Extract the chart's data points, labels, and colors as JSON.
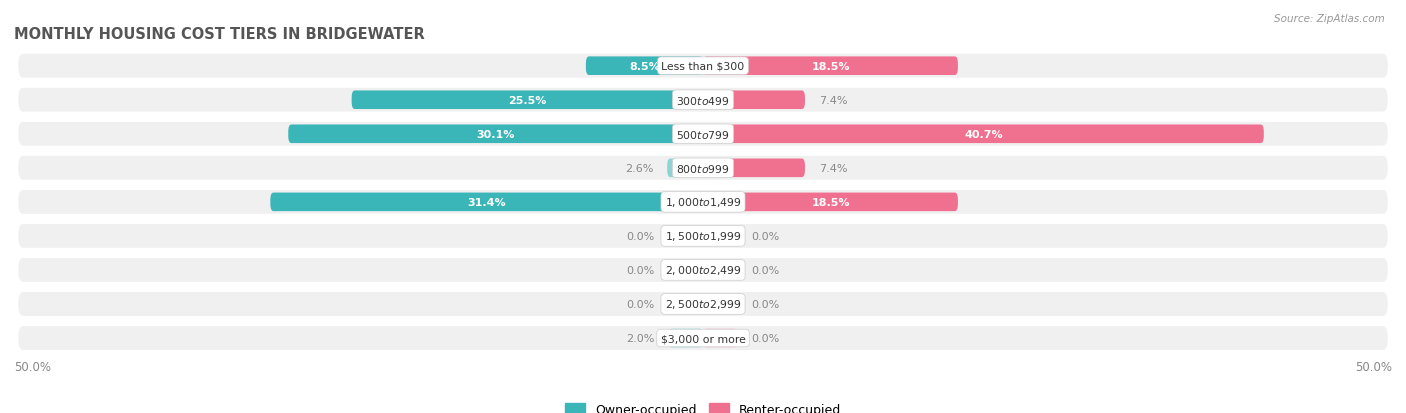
{
  "title": "MONTHLY HOUSING COST TIERS IN BRIDGEWATER",
  "source": "Source: ZipAtlas.com",
  "categories": [
    "Less than $300",
    "$300 to $499",
    "$500 to $799",
    "$800 to $999",
    "$1,000 to $1,499",
    "$1,500 to $1,999",
    "$2,000 to $2,499",
    "$2,500 to $2,999",
    "$3,000 or more"
  ],
  "owner_values": [
    8.5,
    25.5,
    30.1,
    2.6,
    31.4,
    0.0,
    0.0,
    0.0,
    2.0
  ],
  "renter_values": [
    18.5,
    7.4,
    40.7,
    7.4,
    18.5,
    0.0,
    0.0,
    0.0,
    0.0
  ],
  "owner_color_dark": "#3ab5b8",
  "owner_color_light": "#8dd4d6",
  "renter_color_dark": "#f07090",
  "renter_color_light": "#f8b8cc",
  "row_bg": "#f0f0f0",
  "axis_limit": 50.0,
  "title_color": "#555555",
  "source_color": "#999999",
  "label_outside_color": "#888888",
  "label_inside_color": "#ffffff",
  "legend_owner": "Owner-occupied",
  "legend_renter": "Renter-occupied",
  "min_bar_stub": 2.5
}
